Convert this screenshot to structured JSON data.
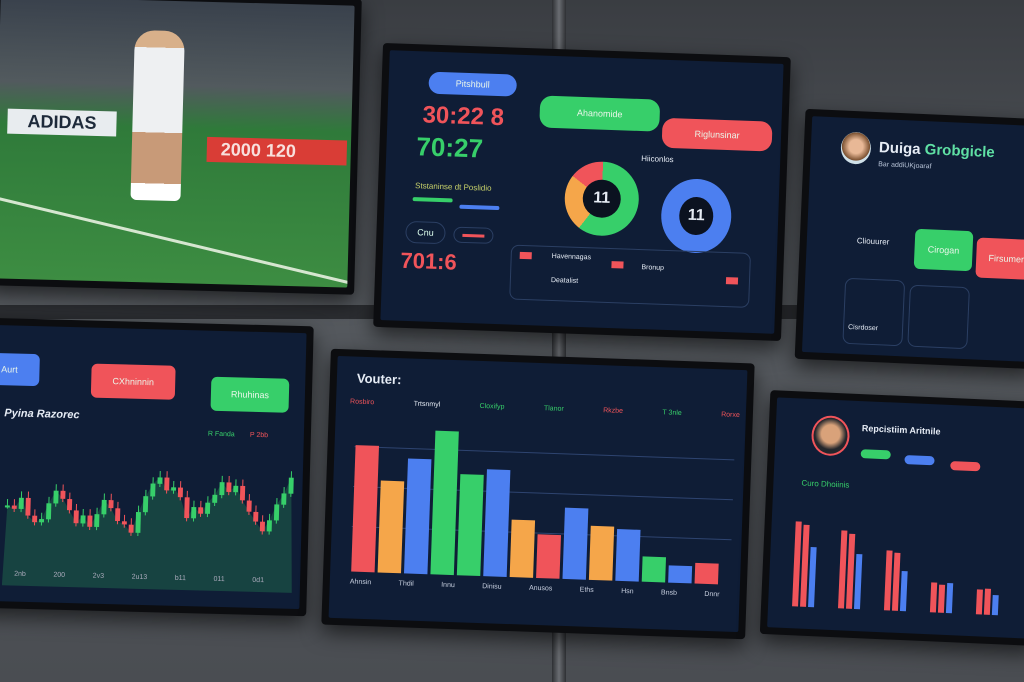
{
  "colors": {
    "red": "#f0545a",
    "orange": "#f5a64a",
    "blue": "#4c7ff0",
    "green": "#37cf6a",
    "screen": "#0f1d36"
  },
  "soccer": {
    "banner_left": "ADIDAS",
    "banner_right": "2000 120"
  },
  "scoreboard": {
    "top_pill": "Pitshbull",
    "time_red": "30:22 8",
    "time_green": "70:27",
    "progress_label": "Ststaninse dt Poslidio",
    "small_btn": "Cnu",
    "score_red": "701:6",
    "green_button": "Ahanomide",
    "red_button": "Riglunsinar",
    "donut_label": "Hiiconlos",
    "donut_left_value": "11",
    "donut_right_value": "11",
    "donut_left_segments": [
      {
        "color": "#37cf6a",
        "pct": 60
      },
      {
        "color": "#f5a64a",
        "pct": 25
      },
      {
        "color": "#f0545a",
        "pct": 15
      }
    ],
    "table_rows": [
      "Havennagas",
      "Bronup",
      "Deatalist"
    ]
  },
  "profile": {
    "name_white": "Duiga",
    "name_green": "Grobgicle",
    "subtitle": "Bar addiUKjoaraf",
    "green_card": "Cirogan",
    "red_card": "Firsumer",
    "label1": "Cliouurer",
    "label2": "Cisrdoser"
  },
  "candles": {
    "buttons": [
      "Aurt",
      "CXhninnin",
      "Rhuhinas"
    ],
    "title": "Pyina Razorec",
    "legend_green": "R Fanda",
    "legend_red": "P 2bb",
    "x_ticks": [
      "2nb",
      "200",
      "2v3",
      "2u13",
      "b11",
      "011",
      "0d1"
    ],
    "closes": [
      50,
      48,
      55,
      44,
      40,
      42,
      52,
      60,
      55,
      48,
      40,
      45,
      38,
      46,
      55,
      50,
      42,
      40,
      35,
      48,
      58,
      66,
      70,
      62,
      64,
      58,
      45,
      52,
      48,
      55,
      60,
      68,
      62,
      66,
      57,
      50,
      44,
      38,
      45,
      55,
      62,
      72
    ]
  },
  "bar_chart": {
    "title": "Vouter:",
    "legend": [
      "Rosbiro",
      "Trtsnmyl",
      "Cloxifyp",
      "Tlanor",
      "Rkzbe",
      "T 3nle",
      "Rorxe"
    ],
    "bars": [
      {
        "v": 110,
        "c": "#f0545a"
      },
      {
        "v": 80,
        "c": "#f5a64a"
      },
      {
        "v": 100,
        "c": "#4c7ff0"
      },
      {
        "v": 125,
        "c": "#37cf6a"
      },
      {
        "v": 88,
        "c": "#37cf6a"
      },
      {
        "v": 93,
        "c": "#4c7ff0"
      },
      {
        "v": 50,
        "c": "#f5a64a"
      },
      {
        "v": 38,
        "c": "#f0545a"
      },
      {
        "v": 62,
        "c": "#4c7ff0"
      },
      {
        "v": 47,
        "c": "#f5a64a"
      },
      {
        "v": 45,
        "c": "#4c7ff0"
      },
      {
        "v": 22,
        "c": "#37cf6a"
      },
      {
        "v": 15,
        "c": "#4c7ff0"
      },
      {
        "v": 18,
        "c": "#f0545a"
      }
    ],
    "x_labels": [
      "Ahnsin",
      "Thdil",
      "Innu",
      "Dinisu",
      "Anusos",
      "Eths",
      "Hsn",
      "Bnsb",
      "Dnnr"
    ]
  },
  "grouped": {
    "title": "Repcistiim Aritnile",
    "subtitle": "Curo Dhoiinis",
    "groups": [
      [
        85,
        82,
        60
      ],
      [
        78,
        75,
        55
      ],
      [
        60,
        58,
        40
      ],
      [
        30,
        28,
        30
      ],
      [
        25,
        26,
        20
      ]
    ]
  }
}
